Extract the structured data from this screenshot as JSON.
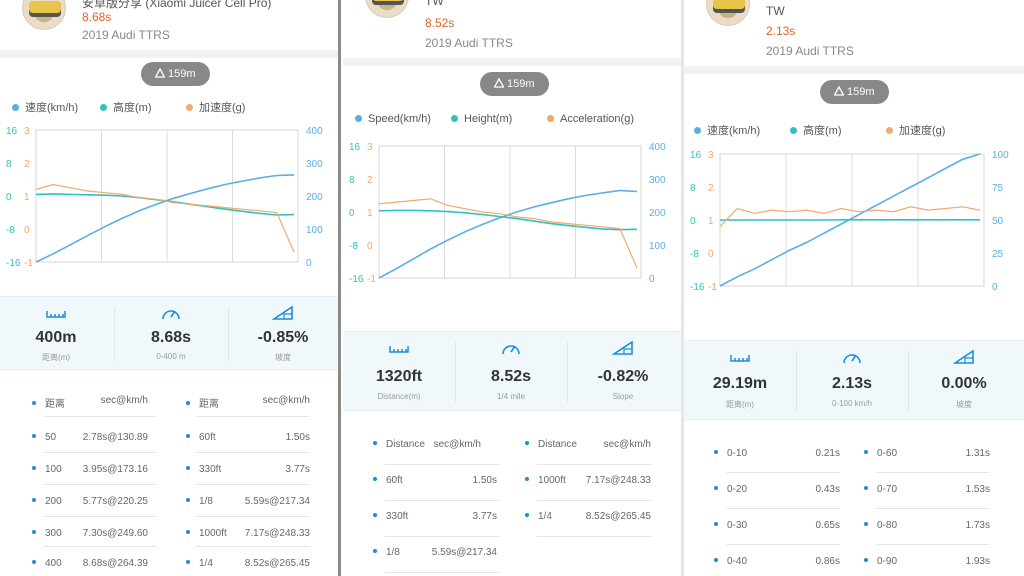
{
  "colors": {
    "speed": "#5aaee6",
    "height": "#2fc2c0",
    "accel": "#f4a86a",
    "time": "#e0622a",
    "accent": "#1a8fd6"
  },
  "panels": [
    {
      "header": {
        "name": "安卓版分享 (Xiaomi Juicer Cell Pro)",
        "time": "8.68s",
        "car": "2019 Audi TTRS"
      },
      "altitude": "159m",
      "legend": {
        "speed": "速度(km/h)",
        "height": "高度(m)",
        "accel": "加速度(g)"
      },
      "chart_data": {
        "type": "line",
        "left_axis_height": [
          "16",
          "8",
          "0",
          "-8",
          "-16"
        ],
        "left_axis_accel": [
          "3",
          "2",
          "1",
          "0",
          "-1"
        ],
        "right_axis_speed": [
          "400",
          "300",
          "200",
          "100",
          "0"
        ],
        "series": [
          {
            "name": "速度(km/h)",
            "values": [
              0,
              25,
              52,
              80,
              107,
              132,
              155,
              175,
              193,
              208,
              222,
              235,
              245,
              255,
              262,
              264
            ]
          },
          {
            "name": "高度(m)",
            "values": [
              0.4,
              0.5,
              0.4,
              0.3,
              0.2,
              0.0,
              -0.4,
              -0.9,
              -1.4,
              -2.0,
              -2.6,
              -3.2,
              -3.7,
              -4.2,
              -4.6,
              -4.5
            ]
          },
          {
            "name": "加速度(g)",
            "values": [
              1.2,
              1.35,
              1.25,
              1.15,
              1.1,
              1.05,
              0.95,
              0.9,
              0.8,
              0.75,
              0.7,
              0.65,
              0.6,
              0.55,
              0.5,
              -0.7
            ]
          }
        ]
      },
      "stats": [
        {
          "value": "400m",
          "label": "距离(m)"
        },
        {
          "value": "8.68s",
          "label": "0-400 m"
        },
        {
          "value": "-0.85%",
          "label": "坡度"
        }
      ],
      "table": {
        "header": [
          "距离",
          "sec@km/h",
          "距离",
          "sec@km/h"
        ],
        "rows": [
          [
            "50",
            "2.78s@130.89",
            "60ft",
            "1.50s"
          ],
          [
            "100",
            "3.95s@173.16",
            "330ft",
            "3.77s"
          ],
          [
            "200",
            "5.77s@220.25",
            "1/8",
            "5.59s@217.34"
          ],
          [
            "300",
            "7.30s@249.60",
            "1000ft",
            "7.17s@248.33"
          ],
          [
            "400",
            "8.68s@264.39",
            "1/4",
            "8.52s@265.45"
          ]
        ]
      }
    },
    {
      "header": {
        "name": "TW",
        "time": "8.52s",
        "car": "2019 Audi TTRS"
      },
      "altitude": "159m",
      "legend": {
        "speed": "Speed(km/h)",
        "height": "Height(m)",
        "accel": "Acceleration(g)"
      },
      "chart_data": {
        "type": "line",
        "left_axis_height": [
          "16",
          "8",
          "0",
          "-8",
          "-16"
        ],
        "left_axis_accel": [
          "3",
          "2",
          "1",
          "0",
          "-1"
        ],
        "right_axis_speed": [
          "400",
          "300",
          "200",
          "100",
          "0"
        ],
        "series": [
          {
            "name": "Speed(km/h)",
            "values": [
              0,
              28,
              58,
              88,
              115,
              140,
              162,
              182,
              200,
              215,
              228,
              240,
              250,
              258,
              265,
              262
            ]
          },
          {
            "name": "Height(m)",
            "values": [
              0.3,
              0.4,
              0.4,
              0.3,
              0.1,
              -0.2,
              -0.6,
              -1.1,
              -1.6,
              -2.2,
              -2.8,
              -3.3,
              -3.7,
              -4.1,
              -4.3,
              -4.2
            ]
          },
          {
            "name": "Acceleration(g)",
            "values": [
              1.25,
              1.3,
              1.35,
              1.4,
              1.2,
              1.1,
              1.0,
              0.95,
              0.85,
              0.8,
              0.7,
              0.65,
              0.6,
              0.55,
              0.5,
              -0.7
            ]
          }
        ]
      },
      "stats": [
        {
          "value": "1320ft",
          "label": "Distance(m)"
        },
        {
          "value": "8.52s",
          "label": "1/4 mile"
        },
        {
          "value": "-0.82%",
          "label": "Slope"
        }
      ],
      "table": {
        "header": [
          "Distance",
          "sec@km/h",
          "Distance",
          "sec@km/h"
        ],
        "rows": [
          [
            "60ft",
            "1.50s",
            "1000ft",
            "7.17s@248.33"
          ],
          [
            "330ft",
            "3.77s",
            "1/4",
            "8.52s@265.45"
          ],
          [
            "1/8",
            "5.59s@217.34",
            "",
            ""
          ]
        ]
      }
    },
    {
      "header": {
        "name": "TW",
        "time": "2.13s",
        "car": "2019 Audi TTRS"
      },
      "altitude": "159m",
      "legend": {
        "speed": "速度(km/h)",
        "height": "高度(m)",
        "accel": "加速度(g)"
      },
      "chart_data": {
        "type": "line",
        "left_axis_height": [
          "16",
          "8",
          "0",
          "-8",
          "-16"
        ],
        "left_axis_accel": [
          "3",
          "2",
          "1",
          "0",
          "-1"
        ],
        "right_axis_speed": [
          "100",
          "75",
          "50",
          "25",
          "0"
        ],
        "series": [
          {
            "name": "速度(km/h)",
            "values": [
              0,
              7,
              13,
              20,
              27,
              33,
              40,
              47,
              54,
              61,
              68,
              75,
              82,
              89,
              96,
              100
            ]
          },
          {
            "name": "高度(m)",
            "values": [
              0,
              0,
              0,
              0,
              0,
              0,
              0,
              0.05,
              0.05,
              0.05,
              0.05,
              0.05,
              0.05,
              0.05,
              0.05,
              0.05
            ]
          },
          {
            "name": "加速度(g)",
            "values": [
              0.8,
              1.35,
              1.2,
              1.3,
              1.25,
              1.3,
              1.2,
              1.35,
              1.25,
              1.3,
              1.25,
              1.4,
              1.3,
              1.35,
              1.4,
              1.3
            ]
          }
        ]
      },
      "stats": [
        {
          "value": "29.19m",
          "label": "距离(m)"
        },
        {
          "value": "2.13s",
          "label": "0-100 km/h"
        },
        {
          "value": "0.00%",
          "label": "坡度"
        }
      ],
      "table": {
        "header": [],
        "rows": [
          [
            "0-10",
            "0.21s",
            "0-60",
            "1.31s"
          ],
          [
            "0-20",
            "0.43s",
            "0-70",
            "1.53s"
          ],
          [
            "0-30",
            "0.65s",
            "0-80",
            "1.73s"
          ],
          [
            "0-40",
            "0.86s",
            "0-90",
            "1.93s"
          ]
        ]
      }
    }
  ]
}
